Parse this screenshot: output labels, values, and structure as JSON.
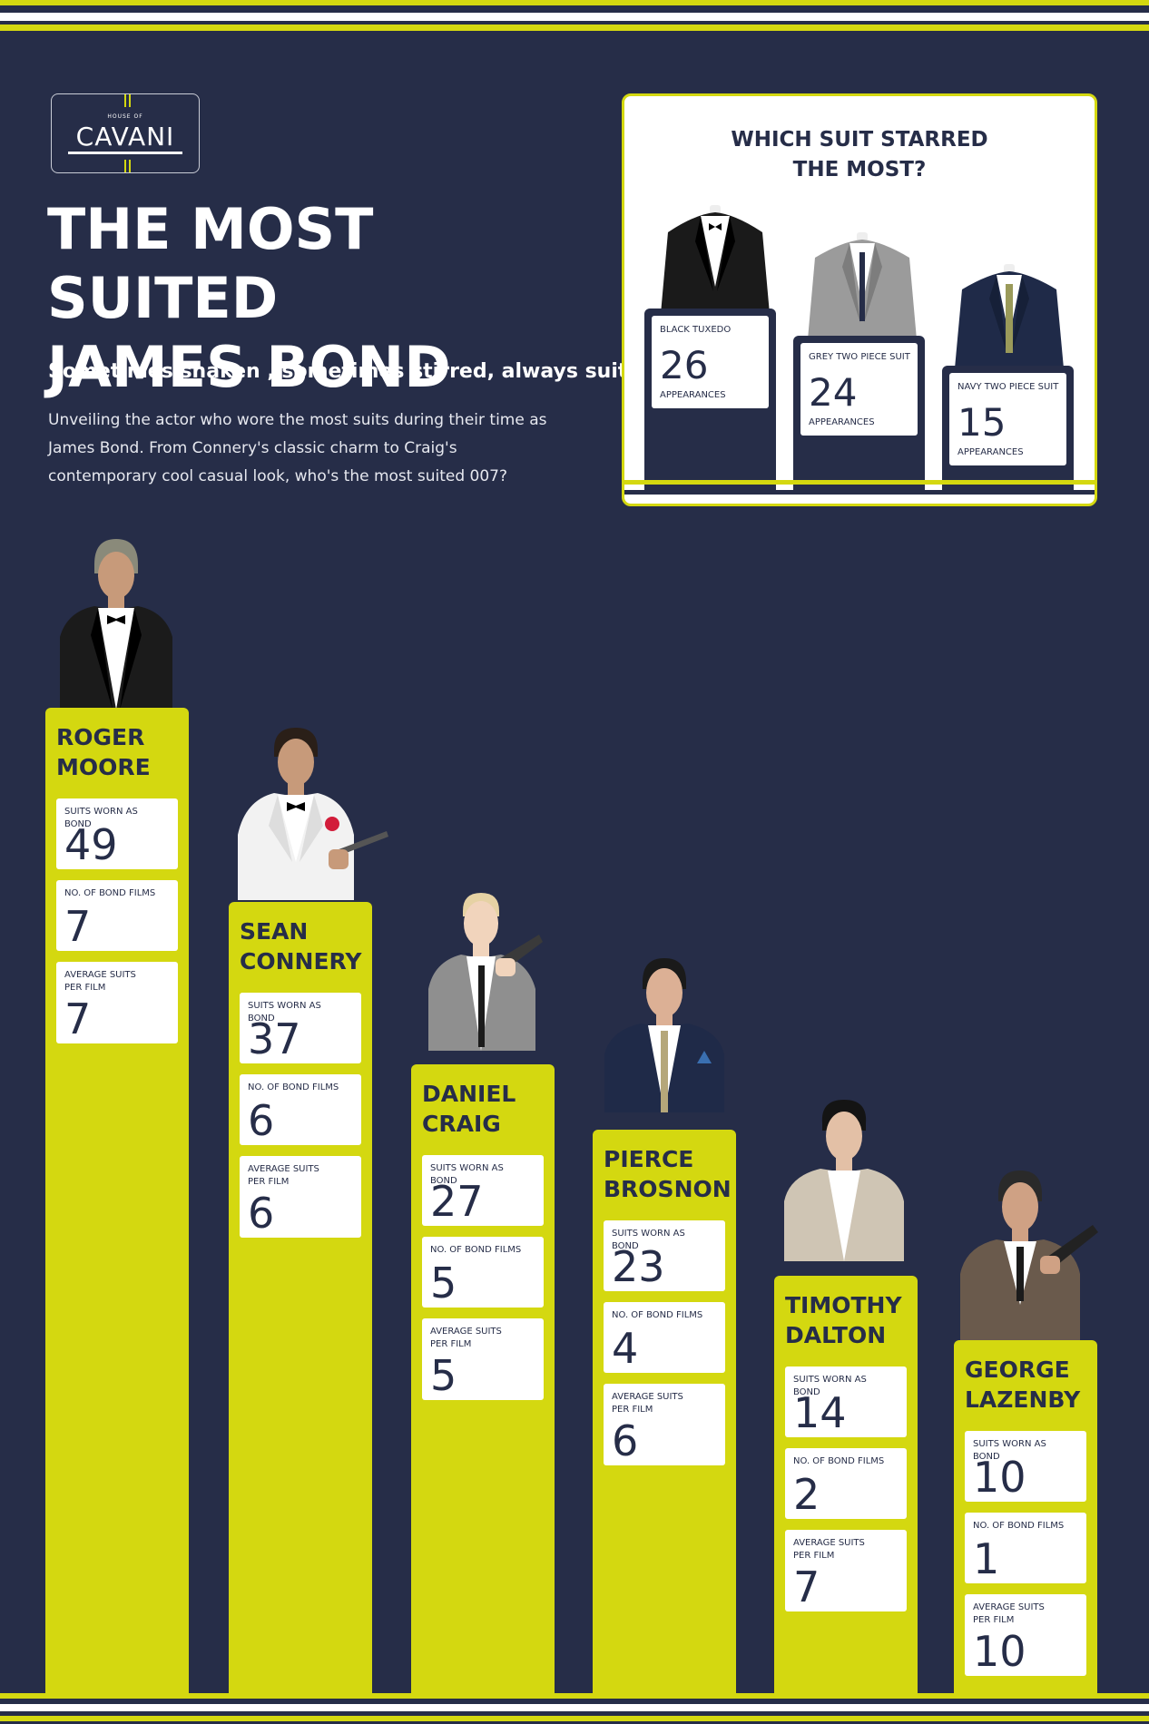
{
  "brand": {
    "small": "HOUSE OF",
    "name": "CAVANI"
  },
  "title_line1": "THE MOST SUITED",
  "title_line2": "JAMES BOND",
  "subtitle": "Sometimes shaken , sometimes stirred, always suited",
  "intro": "Unveiling the actor who wore the most suits during their time as James Bond. From Connery's classic charm to Craig's contemporary cool casual look, who's the most suited 007?",
  "colors": {
    "navy": "#262d48",
    "lime": "#d4d810",
    "white": "#ffffff"
  },
  "suit_panel": {
    "title_line1": "WHICH SUIT STARRED",
    "title_line2": "THE MOST?",
    "unit": "APPEARANCES",
    "items": [
      {
        "label": "BLACK TUXEDO",
        "value": 26,
        "icon": "black-tuxedo-icon"
      },
      {
        "label": "GREY TWO PIECE SUIT",
        "value": 24,
        "icon": "grey-suit-icon"
      },
      {
        "label": "NAVY TWO PIECE SUIT",
        "value": 15,
        "icon": "navy-suit-icon"
      }
    ]
  },
  "stat_labels": {
    "suits": "SUITS WORN AS BOND",
    "films": "NO. OF BOND FILMS",
    "avg1": "AVERAGE SUITS",
    "avg2": "PER FILM"
  },
  "chart_data": [
    {
      "type": "bar",
      "title": "WHICH SUIT STARRED THE MOST?",
      "categories": [
        "BLACK TUXEDO",
        "GREY TWO PIECE SUIT",
        "NAVY TWO PIECE SUIT"
      ],
      "values": [
        26,
        24,
        15
      ],
      "unit": "APPEARANCES"
    },
    {
      "type": "bar",
      "title": "THE MOST SUITED JAMES BOND",
      "categories": [
        "ROGER MOORE",
        "SEAN CONNERY",
        "DANIEL CRAIG",
        "PIERCE BROSNON",
        "TIMOTHY DALTON",
        "GEORGE LAZENBY"
      ],
      "series": [
        {
          "name": "SUITS WORN AS BOND",
          "values": [
            49,
            37,
            27,
            23,
            14,
            10
          ]
        },
        {
          "name": "NO. OF BOND FILMS",
          "values": [
            7,
            6,
            5,
            4,
            2,
            1
          ]
        },
        {
          "name": "AVERAGE SUITS PER FILM",
          "values": [
            7,
            6,
            5,
            6,
            7,
            10
          ]
        }
      ]
    }
  ],
  "actors": [
    {
      "first": "ROGER",
      "last": "MOORE",
      "suits": 49,
      "films": 7,
      "avg": 7,
      "icon": "roger-moore-tuxedo-icon"
    },
    {
      "first": "SEAN",
      "last": "CONNERY",
      "suits": 37,
      "films": 6,
      "avg": 6,
      "icon": "sean-connery-white-dinner-jacket-icon"
    },
    {
      "first": "DANIEL",
      "last": "CRAIG",
      "suits": 27,
      "films": 5,
      "avg": 5,
      "icon": "daniel-craig-grey-suit-icon"
    },
    {
      "first": "PIERCE",
      "last": "BROSNON",
      "suits": 23,
      "films": 4,
      "avg": 6,
      "icon": "pierce-brosnan-navy-suit-icon"
    },
    {
      "first": "TIMOTHY",
      "last": "DALTON",
      "suits": 14,
      "films": 2,
      "avg": 7,
      "icon": "timothy-dalton-beige-jacket-icon"
    },
    {
      "first": "GEORGE",
      "last": "LAZENBY",
      "suits": 10,
      "films": 1,
      "avg": 10,
      "icon": "george-lazenby-tweed-suit-icon"
    }
  ]
}
